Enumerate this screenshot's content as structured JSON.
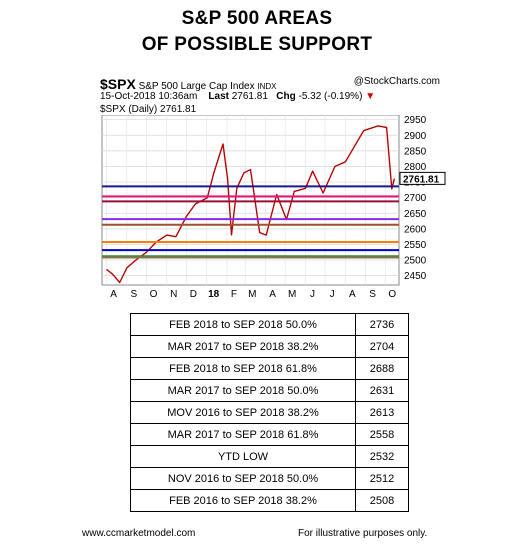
{
  "title": {
    "line1": "S&P 500 AREAS",
    "line2": "OF POSSIBLE SUPPORT"
  },
  "chart_header": {
    "symbol": "$SPX",
    "name": "S&P 500 Large Cap Index",
    "exchange": "INDX",
    "source": "@StockCharts.com",
    "datetime": "15-Oct-2018 10:36am",
    "last_label": "Last",
    "last_value": "2761.81",
    "chg_label": "Chg",
    "chg_value": "-5.32 (-0.19%)",
    "legend": "$SPX (Daily) 2761.81"
  },
  "chart_data": {
    "type": "line",
    "title": "",
    "xlabel": "",
    "ylabel": "",
    "ylim": [
      2420,
      2965
    ],
    "x_ticks": [
      "A",
      "S",
      "O",
      "N",
      "D",
      "18",
      "F",
      "M",
      "A",
      "M",
      "J",
      "J",
      "A",
      "S",
      "O"
    ],
    "y_ticks": [
      2450,
      2500,
      2550,
      2600,
      2650,
      2700,
      2750,
      2800,
      2850,
      2900,
      2950
    ],
    "last_price_label": "2761.81",
    "series": [
      {
        "x": [
          "2017-08-01",
          "2017-08-10",
          "2017-08-21",
          "2017-09-01",
          "2017-09-15",
          "2017-10-01",
          "2017-10-16",
          "2017-11-01",
          "2017-11-15",
          "2017-12-01",
          "2017-12-15",
          "2018-01-02",
          "2018-01-12",
          "2018-01-26",
          "2018-02-02",
          "2018-02-08",
          "2018-02-16",
          "2018-02-27",
          "2018-03-09",
          "2018-03-23",
          "2018-04-02",
          "2018-04-18",
          "2018-05-03",
          "2018-05-15",
          "2018-06-01",
          "2018-06-12",
          "2018-06-28",
          "2018-07-16",
          "2018-08-01",
          "2018-08-29",
          "2018-09-20",
          "2018-10-03",
          "2018-10-11",
          "2018-10-15"
        ],
        "values": [
          2470,
          2455,
          2428,
          2475,
          2500,
          2525,
          2558,
          2580,
          2575,
          2640,
          2680,
          2700,
          2780,
          2872,
          2760,
          2581,
          2730,
          2780,
          2790,
          2588,
          2580,
          2710,
          2630,
          2720,
          2730,
          2785,
          2715,
          2800,
          2815,
          2915,
          2930,
          2925,
          2728,
          2761
        ]
      }
    ],
    "support_lines": [
      {
        "value": 2736,
        "color": "#1a1a8c"
      },
      {
        "value": 2704,
        "color": "#e8157a"
      },
      {
        "value": 2688,
        "color": "#9b0e3a"
      },
      {
        "value": 2631,
        "color": "#8a2be2"
      },
      {
        "value": 2613,
        "color": "#a0522d"
      },
      {
        "value": 2558,
        "color": "#ff7f00"
      },
      {
        "value": 2532,
        "color": "#0000cd"
      },
      {
        "value": 2512,
        "color": "#2e8b22"
      },
      {
        "value": 2508,
        "color": "#8b7355"
      }
    ],
    "price_color": "#cc0000"
  },
  "levels_table": {
    "rows": [
      {
        "label": "FEB 2018 to SEP 2018 50.0%",
        "value": "2736"
      },
      {
        "label": "MAR 2017 to SEP 2018 38.2%",
        "value": "2704"
      },
      {
        "label": "FEB 2018 to SEP 2018 61.8%",
        "value": "2688"
      },
      {
        "label": "MAR 2017 to SEP 2018 50.0%",
        "value": "2631"
      },
      {
        "label": "MOV 2016 to SEP 2018 38.2%",
        "value": "2613"
      },
      {
        "label": "MAR 2017 to SEP 2018 61.8%",
        "value": "2558"
      },
      {
        "label": "YTD LOW",
        "value": "2532"
      },
      {
        "label": "NOV 2016 to SEP 2018 50.0%",
        "value": "2512"
      },
      {
        "label": "FEB 2016 to SEP 2018 38.2%",
        "value": "2508"
      }
    ]
  },
  "footer": {
    "left": "www.ccmarketmodel.com",
    "right": "For illustrative purposes only."
  }
}
